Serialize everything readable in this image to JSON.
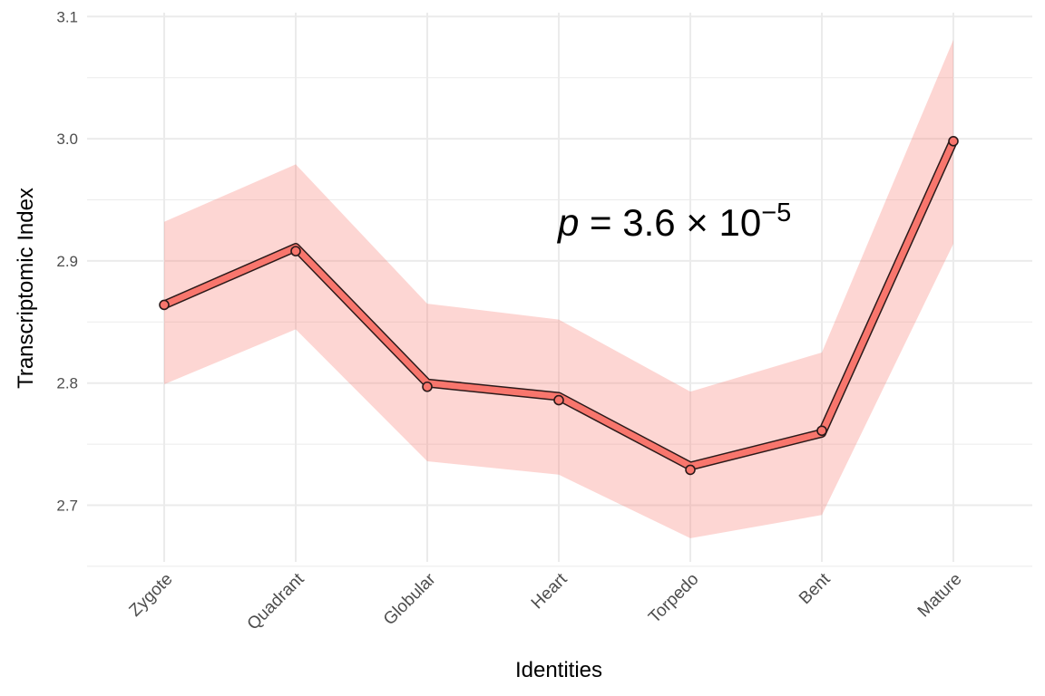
{
  "chart_data": {
    "type": "line",
    "xlabel": "Identities",
    "ylabel": "Transcriptomic Index",
    "categories": [
      "Zygote",
      "Quadrant",
      "Globular",
      "Heart",
      "Torpedo",
      "Bent",
      "Mature"
    ],
    "series": [
      {
        "values": [
          2.864,
          2.911,
          2.8,
          2.789,
          2.732,
          2.759,
          2.998
        ],
        "ci_lower": [
          2.799,
          2.844,
          2.736,
          2.725,
          2.673,
          2.692,
          2.914
        ],
        "ci_upper": [
          2.932,
          2.979,
          2.865,
          2.852,
          2.793,
          2.825,
          3.081
        ],
        "points": [
          2.864,
          2.908,
          2.797,
          2.786,
          2.729,
          2.761,
          2.998
        ]
      }
    ],
    "ylim": [
      2.65,
      3.1
    ],
    "yticks": [
      "2.7",
      "2.8",
      "2.9",
      "3.0",
      "3.1"
    ],
    "ytick_values": [
      2.7,
      2.8,
      2.9,
      3.0,
      3.1
    ],
    "grid": true,
    "annotation": {
      "italic_part": "p",
      "text": " = 3.6 × 10",
      "exponent": "−5",
      "x": 3.0,
      "y": 2.92
    },
    "colors": {
      "line": "#F8766D",
      "ribbon": "#F8766D",
      "outline": "#2b1a1a",
      "grid": "#ebebeb"
    }
  }
}
